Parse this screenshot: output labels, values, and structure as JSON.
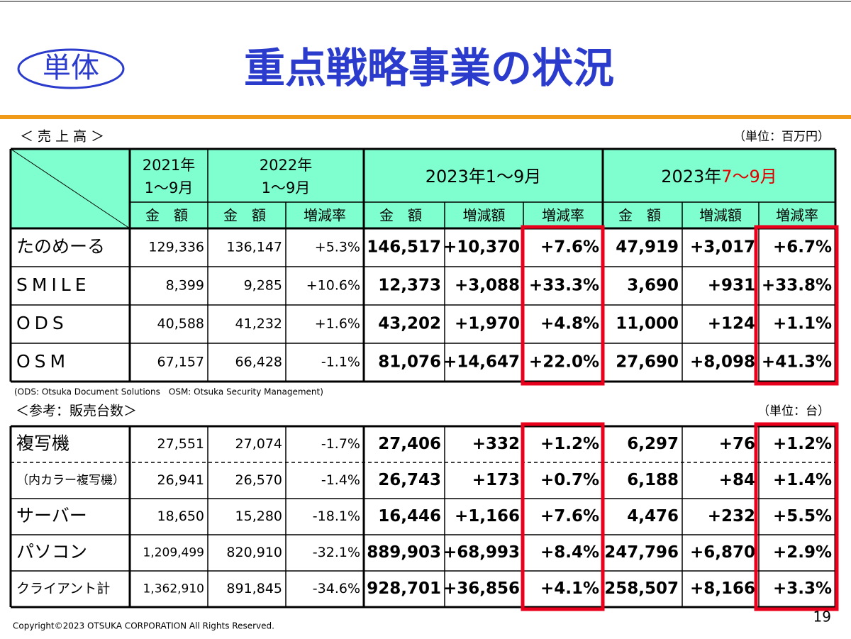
{
  "header": {
    "badge": "単体",
    "title": "重点戦略事業の状況"
  },
  "sales": {
    "heading": "＜ 売 上 高 ＞",
    "unit": "（単位：百万円）",
    "periods": {
      "y2021": [
        "2021年",
        "1～9月"
      ],
      "y2022": [
        "2022年",
        "1～9月"
      ],
      "ytd": "2023年1～9月",
      "q3": [
        "2023年",
        "7～9月"
      ]
    },
    "subheaders": [
      "金　額",
      "金　額",
      "増減率",
      "金　額",
      "増減額",
      "増減率",
      "金　額",
      "増減額",
      "増減率"
    ],
    "rows": [
      [
        "たのめーる",
        "129,336",
        "136,147",
        "+5.3%",
        "146,517",
        "+10,370",
        "+7.6%",
        "47,919",
        "+3,017",
        "+6.7%"
      ],
      [
        "SMILE",
        "8,399",
        "9,285",
        "+10.6%",
        "12,373",
        "+3,088",
        "+33.3%",
        "3,690",
        "+931",
        "+33.8%"
      ],
      [
        "ODS",
        "40,588",
        "41,232",
        "+1.6%",
        "43,202",
        "+1,970",
        "+4.8%",
        "11,000",
        "+124",
        "+1.1%"
      ],
      [
        "OSM",
        "67,157",
        "66,428",
        "-1.1%",
        "81,076",
        "+14,647",
        "+22.0%",
        "27,690",
        "+8,098",
        "+41.3%"
      ]
    ],
    "note": "(ODS: Otsuka Document Solutions　OSM: Otsuka Security Management)"
  },
  "units_sold": {
    "heading": "＜参考：販売台数＞",
    "unit": "（単位：台）",
    "rows": [
      [
        "複写機",
        "27,551",
        "27,074",
        "-1.7%",
        "27,406",
        "+332",
        "+1.2%",
        "6,297",
        "+76",
        "+1.2%"
      ],
      [
        "（内カラー複写機）",
        "26,941",
        "26,570",
        "-1.4%",
        "26,743",
        "+173",
        "+0.7%",
        "6,188",
        "+84",
        "+1.4%"
      ],
      [
        "サーバー",
        "18,650",
        "15,280",
        "-18.1%",
        "16,446",
        "+1,166",
        "+7.6%",
        "4,476",
        "+232",
        "+5.5%"
      ],
      [
        "パソコン",
        "1,209,499",
        "820,910",
        "-32.1%",
        "889,903",
        "+68,993",
        "+8.4%",
        "247,796",
        "+6,870",
        "+2.9%"
      ],
      [
        "クライアント計",
        "1,362,910",
        "891,845",
        "-34.6%",
        "928,701",
        "+36,856",
        "+4.1%",
        "258,507",
        "+8,166",
        "+3.3%"
      ]
    ]
  },
  "footer": {
    "copyright": "Copyright©2023 OTSUKA CORPORATION All Rights Reserved.",
    "page": "19"
  }
}
